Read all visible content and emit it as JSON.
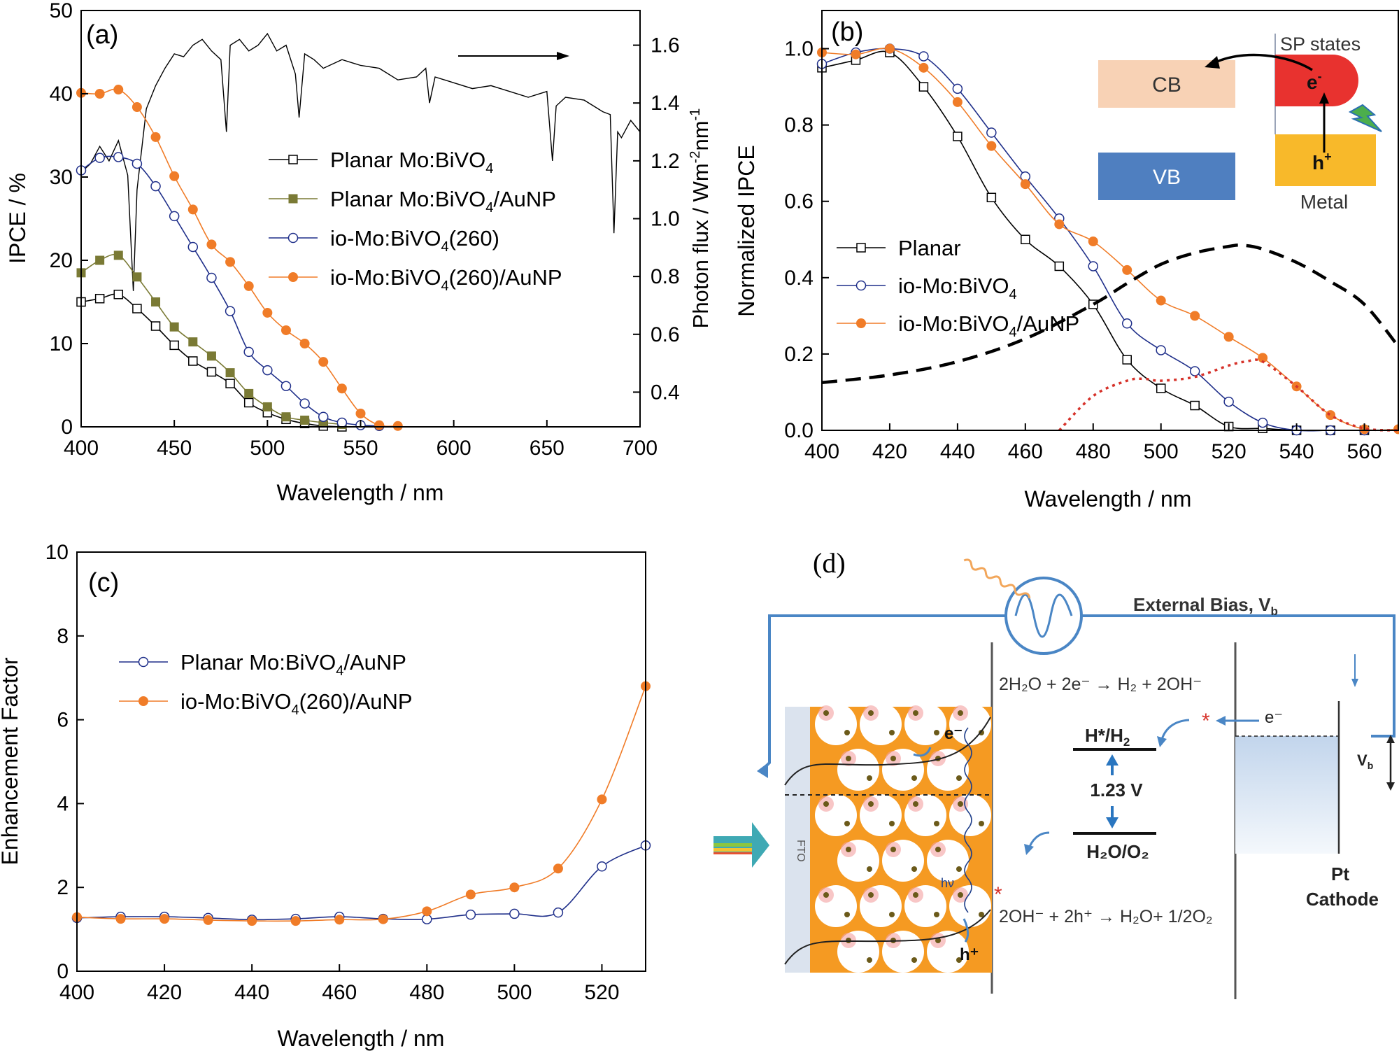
{
  "panel_a": {
    "label": "(a)",
    "xlabel": "Wavelength / nm",
    "ylabel_left": "IPCE / %",
    "ylabel_right": "Photon flux / Wm",
    "ylabel_right_sup1": "-2",
    "ylabel_right_mid": "nm",
    "ylabel_right_sup2": "-1",
    "x_ticks": [
      "400",
      "450",
      "500",
      "550",
      "600",
      "650",
      "700"
    ],
    "y_ticks_left": [
      "0",
      "10",
      "20",
      "30",
      "40",
      "50"
    ],
    "y_ticks_right": [
      "0.4",
      "0.6",
      "0.8",
      "1.0",
      "1.2",
      "1.4",
      "1.6"
    ],
    "legend": [
      {
        "text": "Planar Mo:BiVO",
        "sub": "4",
        "tail": ""
      },
      {
        "text": "Planar Mo:BiVO",
        "sub": "4",
        "tail": "/AuNP"
      },
      {
        "text": "io-Mo:BiVO",
        "sub": "4",
        "tail": "(260)"
      },
      {
        "text": "io-Mo:BiVO",
        "sub": "4",
        "tail": "(260)/AuNP"
      }
    ]
  },
  "panel_b": {
    "label": "(b)",
    "xlabel": "Wavelength / nm",
    "ylabel": "Normalized IPCE",
    "x_ticks": [
      "400",
      "420",
      "440",
      "460",
      "480",
      "500",
      "520",
      "540",
      "560"
    ],
    "y_ticks": [
      "0.0",
      "0.2",
      "0.4",
      "0.6",
      "0.8",
      "1.0"
    ],
    "legend": [
      {
        "text": "Planar",
        "sub": "",
        "tail": ""
      },
      {
        "text": "io-Mo:BiVO",
        "sub": "4",
        "tail": ""
      },
      {
        "text": "io-Mo:BiVO",
        "sub": "4",
        "tail": "/AuNP"
      }
    ],
    "inset": {
      "cb": "CB",
      "vb": "VB",
      "sp_states": "SP states",
      "electron": "e",
      "electron_sup": "-",
      "hole": "h",
      "hole_sup": "+",
      "metal": "Metal"
    }
  },
  "panel_c": {
    "label": "(c)",
    "xlabel": "Wavelength / nm",
    "ylabel": "Enhancement Factor",
    "x_ticks": [
      "400",
      "420",
      "440",
      "460",
      "480",
      "500",
      "520"
    ],
    "y_ticks": [
      "0",
      "2",
      "4",
      "6",
      "8",
      "10"
    ],
    "legend": [
      {
        "text": "Planar Mo:BiVO",
        "sub": "4",
        "tail": "/AuNP"
      },
      {
        "text": "io-Mo:BiVO",
        "sub": "4",
        "tail": "(260)/AuNP"
      }
    ]
  },
  "panel_d": {
    "label": "(d)",
    "external_bias": "External Bias, V",
    "external_bias_sub": "b",
    "reaction_top": "2H₂O + 2e⁻ → H₂ + 2OH⁻",
    "reaction_bottom": "2OH⁻ + 2h⁺ → H₂O+ 1/2O₂",
    "h_level": "H*/H",
    "h_level_sub": "2",
    "o_level": "H₂O/O₂",
    "voltage": "1.23 V",
    "electron": "e⁻",
    "vb_label": "V",
    "vb_sub": "b",
    "pt": "Pt",
    "cathode": "Cathode",
    "fto": "FTO",
    "hv": "hν",
    "e_tag": "e⁻",
    "h_tag": "h⁺",
    "star": "*"
  },
  "colors": {
    "black": "#000000",
    "olive": "#7a7a35",
    "blue": "#1f2f8a",
    "orange": "#f07c28",
    "red_dotted": "#d6322a",
    "cb_fill": "#f8d2b5",
    "vb_fill": "#4f7fc0",
    "sp_red": "#e8322f",
    "metal_yellow": "#f8b92a",
    "circuit_blue": "#4a86c5",
    "electrode_orange": "#f59a22"
  },
  "chart_data": [
    {
      "type": "line",
      "panel": "a",
      "xlabel": "Wavelength / nm",
      "ylabel": "IPCE / %",
      "xlim": [
        400,
        700
      ],
      "ylim": [
        0,
        50
      ],
      "y2label": "Photon flux / Wm-2nm-1",
      "y2lim": [
        0.28,
        1.72
      ],
      "series": [
        {
          "name": "Planar Mo:BiVO4",
          "marker": "open-square",
          "color": "#000000",
          "x": [
            400,
            410,
            420,
            430,
            440,
            450,
            460,
            470,
            480,
            490,
            500,
            510,
            520,
            530,
            540
          ],
          "y": [
            15,
            15.4,
            15.9,
            14.2,
            12.1,
            9.8,
            7.9,
            6.6,
            5.2,
            2.9,
            1.7,
            0.9,
            0.4,
            0.1,
            0.0
          ]
        },
        {
          "name": "Planar Mo:BiVO4/AuNP",
          "marker": "filled-square",
          "color": "#7a7a35",
          "x": [
            400,
            410,
            420,
            430,
            440,
            450,
            460,
            470,
            480,
            490,
            500,
            510,
            520,
            530,
            540
          ],
          "y": [
            18.5,
            20.0,
            20.6,
            18.0,
            15.0,
            12.0,
            10.2,
            8.5,
            6.5,
            4.0,
            2.4,
            1.2,
            0.8,
            0.5,
            0.3
          ]
        },
        {
          "name": "io-Mo:BiVO4(260)",
          "marker": "open-circle",
          "color": "#1f2f8a",
          "x": [
            400,
            410,
            420,
            430,
            440,
            450,
            460,
            470,
            480,
            490,
            500,
            510,
            520,
            530,
            540,
            550,
            560
          ],
          "y": [
            30.8,
            32.3,
            32.4,
            31.6,
            28.9,
            25.3,
            21.6,
            17.9,
            13.9,
            9.0,
            6.8,
            4.9,
            2.8,
            1.2,
            0.5,
            0.2,
            0.1
          ]
        },
        {
          "name": "io-Mo:BiVO4(260)/AuNP",
          "marker": "filled-circle",
          "color": "#f07c28",
          "x": [
            400,
            410,
            420,
            430,
            440,
            450,
            460,
            470,
            480,
            490,
            500,
            510,
            520,
            530,
            540,
            550,
            560,
            570
          ],
          "y": [
            40.1,
            40.0,
            40.5,
            38.4,
            34.8,
            30.1,
            26.1,
            21.9,
            19.8,
            16.9,
            13.7,
            11.6,
            10.0,
            7.8,
            4.6,
            1.6,
            0.2,
            0.1
          ]
        },
        {
          "name": "photon flux (right axis)",
          "marker": "none",
          "color": "#000000",
          "axis": "right",
          "x": [
            400,
            405,
            410,
            415,
            420,
            425,
            428,
            430,
            435,
            440,
            445,
            450,
            455,
            460,
            465,
            470,
            475,
            478,
            480,
            485,
            490,
            495,
            500,
            505,
            510,
            515,
            517,
            520,
            525,
            530,
            540,
            550,
            560,
            570,
            580,
            585,
            587,
            590,
            600,
            610,
            620,
            630,
            640,
            650,
            653,
            655,
            660,
            670,
            680,
            684,
            686,
            688,
            690,
            695,
            700
          ],
          "y": [
            1.16,
            1.19,
            1.25,
            1.2,
            1.27,
            1.15,
            0.75,
            1.1,
            1.38,
            1.46,
            1.52,
            1.57,
            1.56,
            1.6,
            1.62,
            1.58,
            1.55,
            1.3,
            1.6,
            1.62,
            1.58,
            1.6,
            1.64,
            1.58,
            1.6,
            1.5,
            1.35,
            1.57,
            1.55,
            1.52,
            1.55,
            1.53,
            1.52,
            1.48,
            1.49,
            1.52,
            1.4,
            1.49,
            1.47,
            1.45,
            1.46,
            1.44,
            1.42,
            1.44,
            1.2,
            1.39,
            1.42,
            1.41,
            1.37,
            1.36,
            0.95,
            1.3,
            1.28,
            1.34,
            1.3
          ]
        }
      ]
    },
    {
      "type": "line",
      "panel": "b",
      "xlabel": "Wavelength / nm",
      "ylabel": "Normalized IPCE",
      "xlim": [
        400,
        570
      ],
      "ylim": [
        0,
        1.1
      ],
      "series": [
        {
          "name": "Planar",
          "marker": "open-square",
          "color": "#000000",
          "x": [
            400,
            410,
            420,
            430,
            440,
            450,
            460,
            470,
            480,
            490,
            500,
            510,
            520,
            530,
            540,
            550,
            560
          ],
          "y": [
            0.95,
            0.97,
            0.99,
            0.9,
            0.77,
            0.61,
            0.5,
            0.43,
            0.33,
            0.185,
            0.11,
            0.065,
            0.01,
            0.005,
            0.0,
            0.0,
            0.0
          ]
        },
        {
          "name": "io-Mo:BiVO4",
          "marker": "open-circle",
          "color": "#1f2f8a",
          "x": [
            400,
            410,
            420,
            430,
            440,
            450,
            460,
            470,
            480,
            490,
            500,
            510,
            520,
            530,
            540,
            550,
            560
          ],
          "y": [
            0.96,
            0.99,
            1.0,
            0.98,
            0.895,
            0.78,
            0.665,
            0.555,
            0.43,
            0.28,
            0.21,
            0.155,
            0.075,
            0.02,
            0.0,
            0.0,
            0.0
          ]
        },
        {
          "name": "io-Mo:BiVO4/AuNP",
          "marker": "filled-circle",
          "color": "#f07c28",
          "x": [
            400,
            410,
            420,
            430,
            440,
            450,
            460,
            470,
            480,
            490,
            500,
            510,
            520,
            530,
            540,
            550,
            560,
            570
          ],
          "y": [
            0.99,
            0.985,
            1.0,
            0.95,
            0.86,
            0.745,
            0.645,
            0.54,
            0.495,
            0.42,
            0.34,
            0.3,
            0.245,
            0.19,
            0.115,
            0.04,
            0.003,
            0.003
          ]
        },
        {
          "name": "",
          "style": "dashed",
          "color": "#000000",
          "x": [
            400,
            420,
            440,
            460,
            480,
            490,
            500,
            510,
            520,
            524,
            530,
            540,
            550,
            560,
            570
          ],
          "y": [
            0.125,
            0.145,
            0.18,
            0.24,
            0.33,
            0.385,
            0.435,
            0.465,
            0.482,
            0.485,
            0.475,
            0.44,
            0.39,
            0.33,
            0.22
          ]
        },
        {
          "name": "",
          "style": "dotted",
          "color": "#d6322a",
          "x": [
            470,
            480,
            490,
            495,
            500,
            510,
            520,
            525,
            530,
            540,
            550,
            560,
            570
          ],
          "y": [
            0.0,
            0.09,
            0.13,
            0.135,
            0.13,
            0.14,
            0.17,
            0.18,
            0.18,
            0.115,
            0.04,
            0.005,
            0.0
          ]
        }
      ]
    },
    {
      "type": "line",
      "panel": "c",
      "xlabel": "Wavelength / nm",
      "ylabel": "Enhancement Factor",
      "xlim": [
        400,
        530
      ],
      "ylim": [
        0,
        10
      ],
      "series": [
        {
          "name": "Planar Mo:BiVO4/AuNP",
          "marker": "open-circle",
          "color": "#1f2f8a",
          "x": [
            400,
            410,
            420,
            430,
            440,
            450,
            460,
            470,
            480,
            490,
            500,
            510,
            520,
            530
          ],
          "y": [
            1.27,
            1.3,
            1.3,
            1.27,
            1.23,
            1.25,
            1.3,
            1.25,
            1.24,
            1.35,
            1.37,
            1.4,
            2.5,
            3.0
          ]
        },
        {
          "name": "io-Mo:BiVO4(260)/AuNP",
          "marker": "filled-circle",
          "color": "#f07c28",
          "x": [
            400,
            410,
            420,
            430,
            440,
            450,
            460,
            470,
            480,
            490,
            500,
            510,
            520,
            530
          ],
          "y": [
            1.29,
            1.25,
            1.25,
            1.22,
            1.2,
            1.2,
            1.23,
            1.24,
            1.43,
            1.83,
            2.0,
            2.45,
            4.1,
            6.8
          ]
        }
      ]
    }
  ]
}
